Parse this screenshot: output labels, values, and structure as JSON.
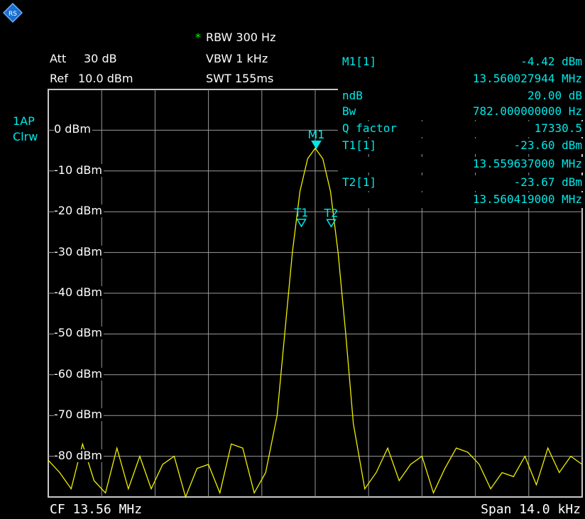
{
  "header": {
    "rbw_star": "*",
    "rbw": "RBW 300 Hz",
    "vbw": "VBW 1 kHz",
    "swt": "SWT 155ms",
    "att_label": "Att",
    "att_value": "30 dB",
    "ref_label": "Ref",
    "ref_value": "10.0 dBm"
  },
  "trace_info": {
    "line1": "1AP",
    "line2": "Clrw"
  },
  "marker_table": [
    {
      "label": "M1[1]",
      "value": "-4.42 dBm"
    },
    {
      "label": "",
      "value": "13.560027944 MHz"
    },
    {
      "label": "ndB",
      "value": "20.00 dB"
    },
    {
      "label": "Bw",
      "value": "782.000000000 Hz"
    },
    {
      "label": "Q factor",
      "value": "17330.5"
    },
    {
      "label": "T1[1]",
      "value": "-23.60 dBm"
    },
    {
      "label": "",
      "value": "13.559637000 MHz"
    },
    {
      "label": "T2[1]",
      "value": "-23.67 dBm"
    },
    {
      "label": "",
      "value": "13.560419000 MHz"
    }
  ],
  "footer": {
    "center": "CF 13.56 MHz",
    "span": "Span 14.0 kHz"
  },
  "colors": {
    "trace": "#f0f000",
    "marker": "#00e8e8",
    "grid": "#9a9a9a",
    "background": "#000000",
    "rbw_star": "#00ff00"
  },
  "chart_data": {
    "type": "line",
    "xlabel": "",
    "ylabel": "",
    "x_center_mhz": 13.56,
    "span_khz": 14.0,
    "xlim_mhz": [
      13.553,
      13.567
    ],
    "ylim_dbm": [
      -90,
      10
    ],
    "y_ticks": [
      "0 dBm",
      "-10 dBm",
      "-20 dBm",
      "-30 dBm",
      "-40 dBm",
      "-50 dBm",
      "-60 dBm",
      "-70 dBm",
      "-80 dBm"
    ],
    "y_tick_values": [
      0,
      -10,
      -20,
      -30,
      -40,
      -50,
      -60,
      -70,
      -80
    ],
    "grid": true,
    "series": [
      {
        "x": [
          13.553,
          13.5533,
          13.5536,
          13.5539,
          13.5542,
          13.5545,
          13.5548,
          13.5551,
          13.5554,
          13.5557,
          13.556,
          13.5563,
          13.5566,
          13.5569,
          13.5572,
          13.5575,
          13.5578,
          13.5581,
          13.5584,
          13.5587,
          13.559,
          13.5592,
          13.5594,
          13.5596,
          13.5598,
          13.56,
          13.5602,
          13.5604,
          13.5606,
          13.5608,
          13.561,
          13.5613,
          13.5616,
          13.5619,
          13.5622,
          13.5625,
          13.5628,
          13.5631,
          13.5634,
          13.5637,
          13.564,
          13.5643,
          13.5646,
          13.5649,
          13.5652,
          13.5655,
          13.5658,
          13.5661,
          13.5664,
          13.5667,
          13.567
        ],
        "y": [
          -81,
          -84,
          -88,
          -77,
          -86,
          -89,
          -78,
          -88,
          -80,
          -88,
          -82,
          -80,
          -90,
          -83,
          -82,
          -89,
          -77,
          -78,
          -89,
          -84,
          -70,
          -50,
          -30,
          -15,
          -7,
          -4.4,
          -7,
          -15,
          -30,
          -50,
          -72,
          -88,
          -84,
          -78,
          -86,
          -82,
          -80,
          -89,
          -83,
          -78,
          -79,
          -82,
          -88,
          -84,
          -85,
          -80,
          -87,
          -78,
          -84,
          -80,
          -82
        ]
      }
    ],
    "markers": [
      {
        "name": "M1",
        "x": 13.560027944,
        "y": -4.42,
        "filled": true
      },
      {
        "name": "T1",
        "x": 13.559637,
        "y": -23.6,
        "filled": false
      },
      {
        "name": "T2",
        "x": 13.560419,
        "y": -23.67,
        "filled": false
      }
    ]
  }
}
